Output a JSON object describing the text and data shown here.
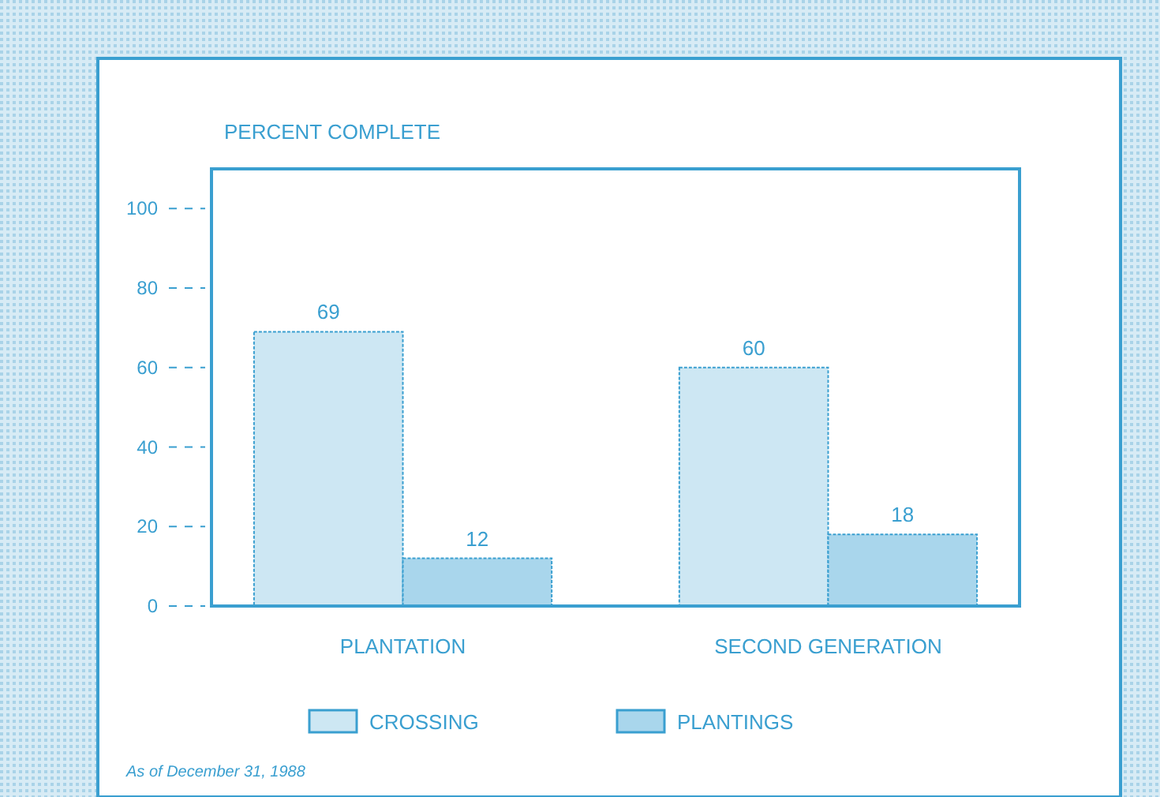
{
  "chart_data": {
    "type": "bar",
    "ylabel": "PERCENT COMPLETE",
    "categories": [
      "PLANTATION",
      "SECOND GENERATION"
    ],
    "series": [
      {
        "name": "CROSSING",
        "color": "#cde7f3",
        "values": [
          69,
          60
        ]
      },
      {
        "name": "PLANTINGS",
        "color": "#a9d6ec",
        "values": [
          12,
          18
        ]
      }
    ],
    "ylim": [
      0,
      110
    ],
    "yticks": [
      0,
      20,
      40,
      60,
      80,
      100
    ],
    "data_labels": true,
    "legend": "bottom",
    "annotations": [
      "As of December 31, 1988"
    ]
  }
}
